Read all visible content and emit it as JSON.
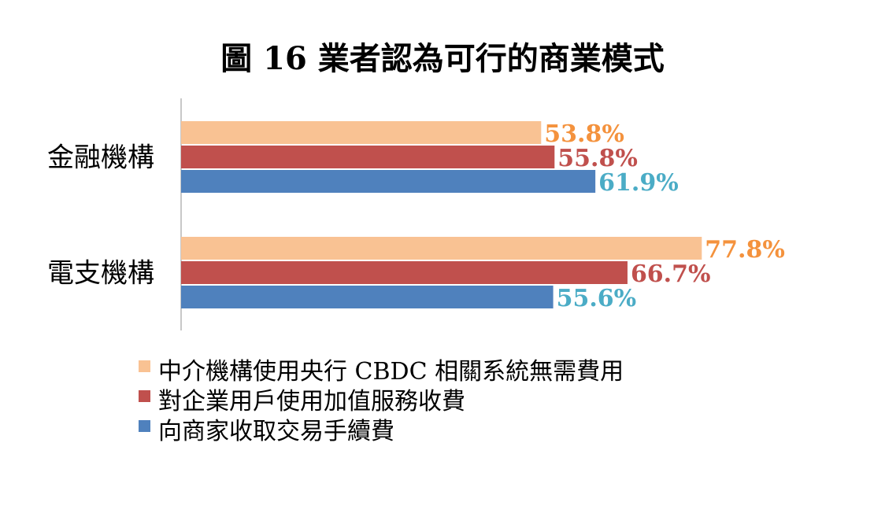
{
  "chart_data": {
    "type": "bar",
    "orientation": "horizontal",
    "title": "圖 16  業者認為可行的商業模式",
    "categories": [
      "金融機構",
      "電支機構"
    ],
    "series": [
      {
        "name": "中介機構使用央行 CBDC 相關系統無需費用",
        "values": [
          53.8,
          77.8
        ],
        "labels": [
          "53.8%",
          "77.8%"
        ]
      },
      {
        "name": "對企業用戶使用加值服務收費",
        "values": [
          55.8,
          66.7
        ],
        "labels": [
          "55.8%",
          "66.7%"
        ]
      },
      {
        "name": "向商家收取交易手續費",
        "values": [
          61.9,
          55.6
        ],
        "labels": [
          "61.9%",
          "55.6%"
        ]
      }
    ],
    "xlim": [
      0,
      100
    ],
    "grid": false,
    "legend_position": "bottom",
    "colors": {
      "bar": [
        "#F9C293",
        "#C0504D",
        "#4F81BD"
      ],
      "label": [
        "#F4923D",
        "#C0504D",
        "#4BACC6"
      ]
    }
  }
}
